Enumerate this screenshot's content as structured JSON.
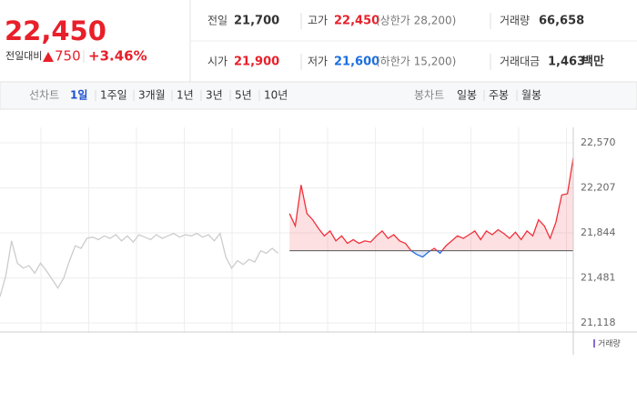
{
  "quote": {
    "price": "22,450",
    "change_label": "전일대비",
    "change": "750",
    "change_pct": "+3.46%"
  },
  "stats": [
    {
      "label": "전일",
      "value": "21,700"
    },
    {
      "label": "고가",
      "value": "22,450",
      "note": "(상한가 28,200)"
    },
    {
      "label": "거래량",
      "value": "66,658"
    },
    {
      "label": "시가",
      "value": "21,900"
    },
    {
      "label": "저가",
      "value": "21,600",
      "note": "(하한가 15,200)"
    },
    {
      "label": "거래대금",
      "value": "1,463",
      "unit": "백만"
    }
  ],
  "tabs": {
    "line_label": "선차트",
    "line": [
      "1일",
      "1주일",
      "3개월",
      "1년",
      "3년",
      "5년",
      "10년"
    ],
    "candle_label": "봉차트",
    "candle": [
      "일봉",
      "주봉",
      "월봉"
    ]
  },
  "chart_data": {
    "type": "line",
    "legend": "거래량",
    "baseline": 21700,
    "ylim": [
      21045,
      22695
    ],
    "yticks": [
      {
        "value": 21118,
        "label": "21,118"
      },
      {
        "value": 21481,
        "label": "21,481"
      },
      {
        "value": 21844,
        "label": "21,844"
      },
      {
        "value": 22207,
        "label": "22,207"
      },
      {
        "value": 22570,
        "label": "22,570"
      }
    ],
    "series": [
      {
        "color": "#cccccc",
        "values": [
          21330,
          21500,
          21780,
          21600,
          21560,
          21580,
          21520,
          21600,
          21540,
          21470,
          21400,
          21480,
          21620,
          21740,
          21720,
          21800,
          21810,
          21790,
          21820,
          21800,
          21830,
          21780,
          21820,
          21770,
          21830,
          21810,
          21790,
          21830,
          21800,
          21820,
          21840,
          21810,
          21830,
          21820,
          21840,
          21810,
          21830,
          21780,
          21840,
          21650,
          21560,
          21620,
          21590,
          21630,
          21610,
          21700,
          21680,
          21720,
          21680,
          null,
          null,
          null,
          null,
          null,
          null,
          null,
          null,
          null,
          null,
          null,
          null,
          null,
          null,
          null,
          null,
          null,
          null,
          null,
          null,
          null,
          null,
          null,
          null,
          null,
          null,
          null,
          null,
          null,
          null,
          null,
          null,
          null,
          null,
          null,
          null,
          null,
          null,
          null,
          null,
          null,
          null,
          null,
          null,
          null,
          null,
          null,
          null,
          null,
          null,
          null
        ]
      },
      {
        "color": "#f0303a",
        "color_down": "#2a6be0",
        "values": [
          null,
          null,
          null,
          null,
          null,
          null,
          null,
          null,
          null,
          null,
          null,
          null,
          null,
          null,
          null,
          null,
          null,
          null,
          null,
          null,
          null,
          null,
          null,
          null,
          null,
          null,
          null,
          null,
          null,
          null,
          null,
          null,
          null,
          null,
          null,
          null,
          null,
          null,
          null,
          null,
          null,
          null,
          null,
          null,
          null,
          null,
          null,
          null,
          null,
          null,
          22000,
          21900,
          22230,
          22000,
          21950,
          21880,
          21820,
          21860,
          21780,
          21820,
          21760,
          21790,
          21760,
          21780,
          21770,
          21820,
          21860,
          21800,
          21830,
          21780,
          21760,
          21700,
          21670,
          21650,
          21690,
          21720,
          21680,
          21740,
          21780,
          21820,
          21800,
          21830,
          21860,
          21790,
          21860,
          21830,
          21870,
          21840,
          21800,
          21850,
          21790,
          21860,
          21820,
          21950,
          21900,
          21800,
          21930,
          22150,
          22160,
          22450
        ]
      }
    ]
  }
}
